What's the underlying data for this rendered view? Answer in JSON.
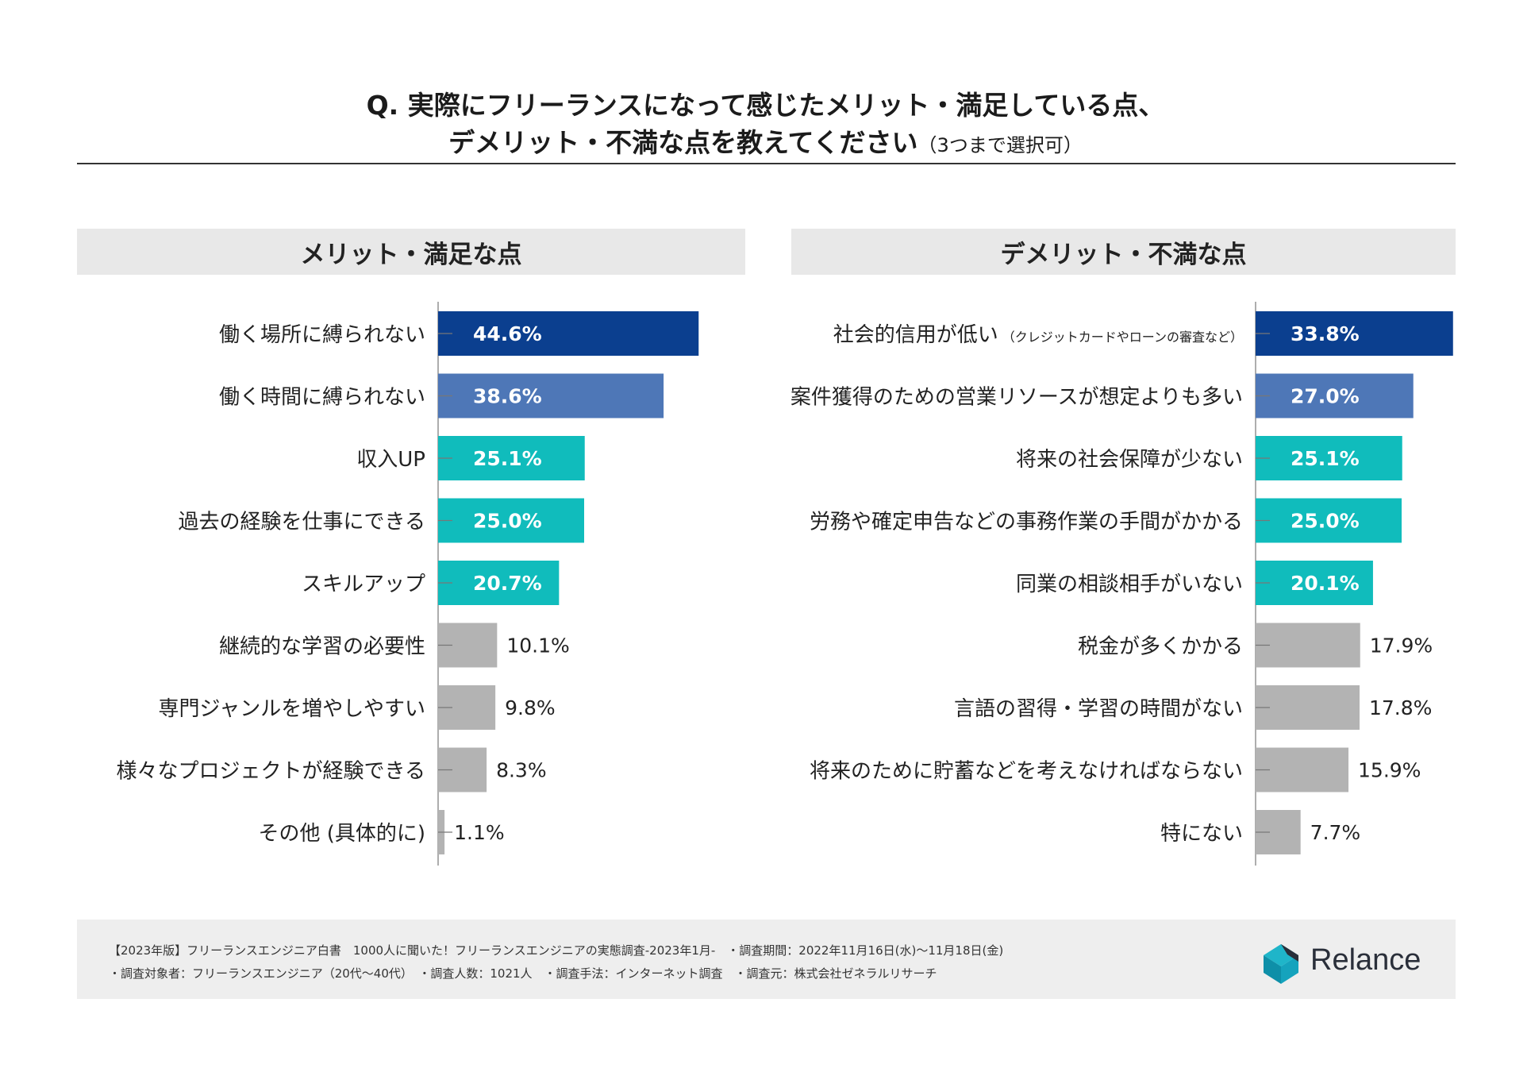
{
  "title_line1": "Q. 実際にフリーランスになって感じたメリット・満足している点、",
  "title_line2": "デメリット・不満な点を教えてください",
  "title_note": "（3つまで選択可）",
  "colors": {
    "dark_blue": "#0b3f8f",
    "mid_blue": "#4e77b7",
    "teal": "#10bcbc",
    "gray": "#b3b3b3",
    "panel_bg": "#e8e8e8"
  },
  "chart_data": [
    {
      "type": "bar",
      "orientation": "horizontal",
      "title": "メリット・満足な点",
      "categories": [
        "働く場所に縛られない",
        "働く時間に縛られない",
        "収入UP",
        "過去の経験を仕事にできる",
        "スキルアップ",
        "継続的な学習の必要性",
        "専門ジャンルを増やしやすい",
        "様々なプロジェクトが経験できる",
        "その他 (具体的に)"
      ],
      "category_notes": [
        "",
        "",
        "",
        "",
        "",
        "",
        "",
        "",
        ""
      ],
      "values": [
        44.6,
        38.6,
        25.1,
        25.0,
        20.7,
        10.1,
        9.8,
        8.3,
        1.1
      ],
      "labels": [
        "44.6%",
        "38.6%",
        "25.1%",
        "25.0%",
        "20.7%",
        "10.1%",
        "9.8%",
        "8.3%",
        "1.1%"
      ],
      "bar_colors": [
        "dark_blue",
        "mid_blue",
        "teal",
        "teal",
        "teal",
        "gray",
        "gray",
        "gray",
        "gray"
      ],
      "unit": "%"
    },
    {
      "type": "bar",
      "orientation": "horizontal",
      "title": "デメリット・不満な点",
      "categories": [
        "社会的信用が低い",
        "案件獲得のための営業リソースが想定よりも多い",
        "将来の社会保障が少ない",
        "労務や確定申告などの事務作業の手間がかかる",
        "同業の相談相手がいない",
        "税金が多くかかる",
        "言語の習得・学習の時間がない",
        "将来のために貯蓄などを考えなければならない",
        "特にない"
      ],
      "category_notes": [
        "（クレジットカードやローンの審査など）",
        "",
        "",
        "",
        "",
        "",
        "",
        "",
        ""
      ],
      "values": [
        33.8,
        27.0,
        25.1,
        25.0,
        20.1,
        17.9,
        17.8,
        15.9,
        7.7
      ],
      "labels": [
        "33.8%",
        "27.0%",
        "25.1%",
        "25.0%",
        "20.1%",
        "17.9%",
        "17.8%",
        "15.9%",
        "7.7%"
      ],
      "bar_colors": [
        "dark_blue",
        "mid_blue",
        "teal",
        "teal",
        "teal",
        "gray",
        "gray",
        "gray",
        "gray"
      ],
      "unit": "%"
    }
  ],
  "footer": {
    "line1": "【2023年版】フリーランスエンジニア白書　1000人に聞いた！フリーランスエンジニアの実態調査-2023年1月-　・調査期間：2022年11月16日(水)〜11月18日(金)",
    "line2": "・調査対象者：フリーランスエンジニア（20代〜40代）　・調査人数：1021人　・調査手法：インターネット調査　・調査元：株式会社ゼネラルリサーチ"
  },
  "logo_text": "Relance"
}
